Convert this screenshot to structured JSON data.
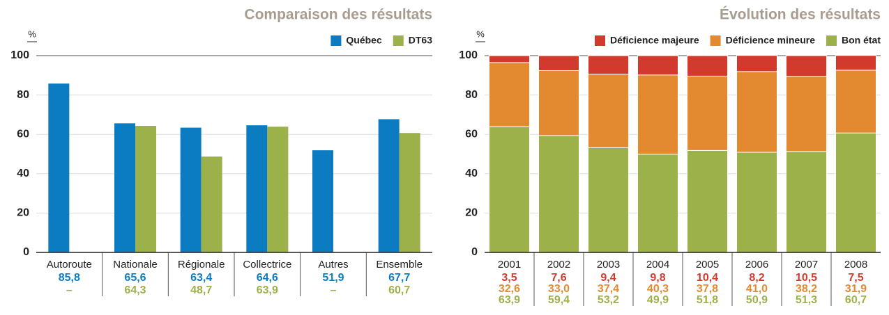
{
  "chart_data": [
    {
      "type": "bar",
      "title": "Comparaison des résultats",
      "ylabel": "%",
      "categories": [
        "Autoroute",
        "Nationale",
        "Régionale",
        "Collectrice",
        "Autres",
        "Ensemble"
      ],
      "series": [
        {
          "name": "Québec",
          "color": "#0b7cc1",
          "values": [
            85.8,
            65.6,
            63.4,
            64.6,
            51.9,
            67.7
          ],
          "value_labels": [
            "85,8",
            "65,6",
            "63,4",
            "64,6",
            "51,9",
            "67,7"
          ]
        },
        {
          "name": "DT63",
          "color": "#9db14a",
          "values": [
            null,
            64.3,
            48.7,
            63.9,
            null,
            60.7
          ],
          "value_labels": [
            "–",
            "64,3",
            "48,7",
            "63,9",
            "–",
            "60,7"
          ]
        }
      ],
      "ylim": [
        0,
        100
      ],
      "yticks": [
        0,
        20,
        40,
        60,
        80,
        100
      ],
      "grid": true,
      "legend": "top-right"
    },
    {
      "type": "stacked_bar",
      "title": "Évolution des résultats",
      "ylabel": "%",
      "categories": [
        "2001",
        "2002",
        "2003",
        "2004",
        "2005",
        "2006",
        "2007",
        "2008"
      ],
      "series": [
        {
          "name": "Déficience majeure",
          "color": "#d23a2e",
          "values": [
            3.5,
            7.6,
            9.4,
            9.8,
            10.4,
            8.2,
            10.5,
            7.5
          ],
          "value_labels": [
            "3,5",
            "7,6",
            "9,4",
            "9,8",
            "10,4",
            "8,2",
            "10,5",
            "7,5"
          ]
        },
        {
          "name": "Déficience mineure",
          "color": "#e38a31",
          "values": [
            32.6,
            33.0,
            37.4,
            40.3,
            37.8,
            41.0,
            38.2,
            31.9
          ],
          "value_labels": [
            "32,6",
            "33,0",
            "37,4",
            "40,3",
            "37,8",
            "41,0",
            "38,2",
            "31,9"
          ]
        },
        {
          "name": "Bon état",
          "color": "#9db14a",
          "values": [
            63.9,
            59.4,
            53.2,
            49.9,
            51.8,
            50.9,
            51.3,
            60.7
          ],
          "value_labels": [
            "63,9",
            "59,4",
            "53,2",
            "49,9",
            "51,8",
            "50,9",
            "51,3",
            "60,7"
          ]
        }
      ],
      "ylim": [
        0,
        100
      ],
      "yticks": [
        0,
        20,
        40,
        60,
        80,
        100
      ],
      "grid": true,
      "legend": "top-right"
    }
  ]
}
